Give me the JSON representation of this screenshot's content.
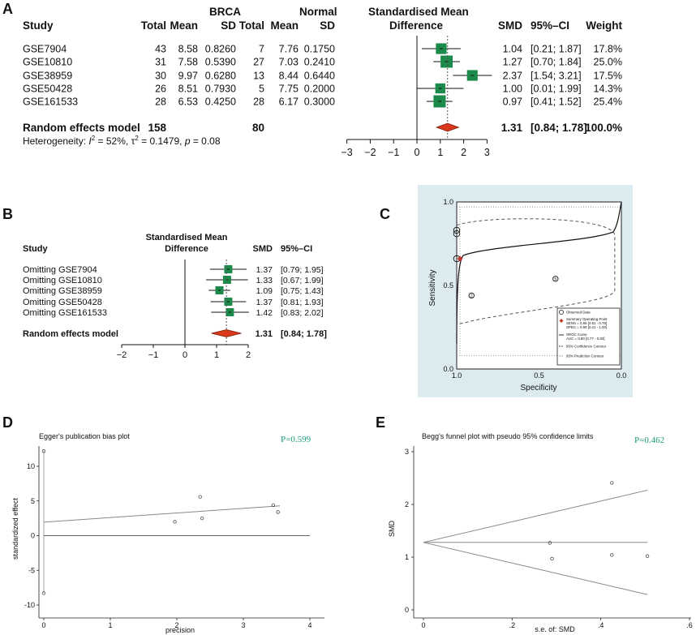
{
  "panels": {
    "a": "A",
    "b": "B",
    "c": "C",
    "d": "D",
    "e": "E"
  },
  "chart_data": [
    {
      "type": "forest",
      "panel": "A",
      "group_headers": {
        "brca": "BRCA",
        "normal": "Normal"
      },
      "columns": {
        "study": "Study",
        "total1": "Total",
        "mean1": "Mean",
        "sd1": "SD",
        "total2": "Total",
        "mean2": "Mean",
        "sd2": "SD",
        "smd_header_1": "Standardised Mean",
        "smd_header_2": "Difference",
        "smd": "SMD",
        "ci": "95%–CI",
        "weight": "Weight"
      },
      "studies": [
        {
          "name": "GSE7904",
          "n1": "43",
          "mean1": "8.58",
          "sd1": "0.8260",
          "n2": "7",
          "mean2": "7.76",
          "sd2": "0.1750",
          "smd": 1.04,
          "lo": 0.21,
          "hi": 1.87,
          "smd_text": "1.04",
          "ci_text": "[0.21; 1.87]",
          "weight": 17.8,
          "weight_text": "17.8%"
        },
        {
          "name": "GSE10810",
          "n1": "31",
          "mean1": "7.58",
          "sd1": "0.5390",
          "n2": "27",
          "mean2": "7.03",
          "sd2": "0.2410",
          "smd": 1.27,
          "lo": 0.7,
          "hi": 1.84,
          "smd_text": "1.27",
          "ci_text": "[0.70; 1.84]",
          "weight": 25.0,
          "weight_text": "25.0%"
        },
        {
          "name": "GSE38959",
          "n1": "30",
          "mean1": "9.97",
          "sd1": "0.6280",
          "n2": "13",
          "mean2": "8.44",
          "sd2": "0.6440",
          "smd": 2.37,
          "lo": 1.54,
          "hi": 3.21,
          "smd_text": "2.37",
          "ci_text": "[1.54; 3.21]",
          "weight": 17.5,
          "weight_text": "17.5%"
        },
        {
          "name": "GSE50428",
          "n1": "26",
          "mean1": "8.51",
          "sd1": "0.7930",
          "n2": "5",
          "mean2": "7.75",
          "sd2": "0.2000",
          "smd": 1.0,
          "lo": 0.01,
          "hi": 1.99,
          "smd_text": "1.00",
          "ci_text": "[0.01; 1.99]",
          "weight": 14.3,
          "weight_text": "14.3%"
        },
        {
          "name": "GSE161533",
          "n1": "28",
          "mean1": "6.53",
          "sd1": "0.4250",
          "n2": "28",
          "mean2": "6.17",
          "sd2": "0.3000",
          "smd": 0.97,
          "lo": 0.41,
          "hi": 1.52,
          "smd_text": "0.97",
          "ci_text": "[0.41; 1.52]",
          "weight": 25.4,
          "weight_text": "25.4%"
        }
      ],
      "summary": {
        "label": "Random effects model",
        "n1": "158",
        "n2": "80",
        "smd": 1.31,
        "lo": 0.84,
        "hi": 1.78,
        "smd_text": "1.31",
        "ci_text": "[0.84; 1.78]",
        "weight_text": "100.0%"
      },
      "heterogeneity": {
        "prefix": "Heterogeneity: ",
        "i2_sym": "I",
        "i2_sup": "2",
        "i2_val": " = 52%, ",
        "tau_sym": "τ",
        "tau_sup": "2",
        "tau_val": " = 0.1479, ",
        "p_sym": "p",
        "p_val": " = 0.08"
      },
      "axis": {
        "min": -3,
        "max": 3,
        "ticks": [
          -3,
          -2,
          -1,
          0,
          1,
          2,
          3
        ],
        "tick_labels": [
          "−3",
          "−2",
          "−1",
          "0",
          "1",
          "2",
          "3"
        ]
      }
    },
    {
      "type": "forest",
      "panel": "B",
      "columns": {
        "study": "Study",
        "smd_header_1": "Standardised Mean",
        "smd_header_2": "Difference",
        "smd": "SMD",
        "ci": "95%–CI"
      },
      "studies": [
        {
          "name": "Omitting GSE7904",
          "smd": 1.37,
          "lo": 0.79,
          "hi": 1.95,
          "smd_text": "1.37",
          "ci_text": "[0.79; 1.95]"
        },
        {
          "name": "Omitting GSE10810",
          "smd": 1.33,
          "lo": 0.67,
          "hi": 1.99,
          "smd_text": "1.33",
          "ci_text": "[0.67; 1.99]"
        },
        {
          "name": "Omitting GSE38959",
          "smd": 1.09,
          "lo": 0.75,
          "hi": 1.43,
          "smd_text": "1.09",
          "ci_text": "[0.75; 1.43]"
        },
        {
          "name": "Omitting GSE50428",
          "smd": 1.37,
          "lo": 0.81,
          "hi": 1.93,
          "smd_text": "1.37",
          "ci_text": "[0.81; 1.93]"
        },
        {
          "name": "Omitting GSE161533",
          "smd": 1.42,
          "lo": 0.83,
          "hi": 2.02,
          "smd_text": "1.42",
          "ci_text": "[0.83; 2.02]"
        }
      ],
      "summary": {
        "label": "Random effects model",
        "smd": 1.31,
        "lo": 0.84,
        "hi": 1.78,
        "smd_text": "1.31",
        "ci_text": "[0.84; 1.78]"
      },
      "axis": {
        "min": -2,
        "max": 2,
        "ticks": [
          -2,
          -1,
          0,
          1,
          2
        ],
        "tick_labels": [
          "−2",
          "−1",
          "0",
          "1",
          "2"
        ]
      }
    },
    {
      "type": "sroc",
      "panel": "C",
      "xlabel": "Specificity",
      "ylabel": "Sensitivity",
      "x_ticks": [
        "1.0",
        "0.5",
        "0.0"
      ],
      "y_ticks": [
        "1.0",
        "0.5",
        "0.0"
      ],
      "points": [
        {
          "spec": 1.0,
          "sens": 0.83,
          "label": ""
        },
        {
          "spec": 1.0,
          "sens": 0.81,
          "label": ""
        },
        {
          "spec": 1.0,
          "sens": 0.66,
          "label": ""
        },
        {
          "spec": 0.4,
          "sens": 0.54,
          "label": "5"
        },
        {
          "spec": 0.91,
          "sens": 0.44,
          "label": "2"
        }
      ],
      "summary_point": {
        "spec": 0.98,
        "sens": 0.66
      },
      "legend": [
        "Observed Data",
        "Summary Operating Point",
        "SENS = 0.66 [0.51 - 0.78]",
        "SPEC = 0.98 [0.21 - 1.00]",
        "SROC Curve",
        "AUC = 0.80 [0.77 - 0.83]",
        "95% Confidence Contour",
        "95% Prediction Contour"
      ],
      "colors": {
        "background": "#dcebf0",
        "summary": "#c0392b"
      }
    },
    {
      "type": "scatter",
      "panel": "D",
      "title": "Egger's publication bias plot",
      "p_text": "P=0.599",
      "xlabel": "precision",
      "ylabel": "standardized effect",
      "x_ticks": [
        "0",
        "1",
        "2",
        "3",
        "4"
      ],
      "y_ticks": [
        "10",
        "5",
        "0",
        "-5",
        "-10"
      ],
      "xlim": [
        0,
        4
      ],
      "ylim": [
        -11,
        13
      ],
      "points": [
        {
          "x": 0.0,
          "y": 12.2
        },
        {
          "x": 0.0,
          "y": -8.3
        },
        {
          "x": 1.97,
          "y": 2.0
        },
        {
          "x": 2.35,
          "y": 5.6
        },
        {
          "x": 2.38,
          "y": 2.5
        },
        {
          "x": 3.45,
          "y": 4.4
        },
        {
          "x": 3.52,
          "y": 3.4
        }
      ],
      "fit_line": {
        "x0": 0,
        "y0": 1.95,
        "x1": 3.55,
        "y1": 4.3
      },
      "colors": {
        "p_value": "#1a9c7c"
      }
    },
    {
      "type": "scatter",
      "panel": "E",
      "title": "Begg's funnel plot with pseudo 95% confidence limits",
      "p_text": "P=0.462",
      "xlabel": "s.e. of: SMD",
      "ylabel": "SMD",
      "x_ticks": [
        "0",
        ".2",
        ".4",
        ".6"
      ],
      "y_ticks": [
        "0",
        "1",
        "2",
        "3"
      ],
      "xlim": [
        0,
        0.6
      ],
      "ylim": [
        0,
        3.1
      ],
      "points": [
        {
          "x": 0.285,
          "y": 1.27
        },
        {
          "x": 0.29,
          "y": 0.97
        },
        {
          "x": 0.425,
          "y": 2.41
        },
        {
          "x": 0.425,
          "y": 1.04
        },
        {
          "x": 0.505,
          "y": 1.02
        }
      ],
      "pooled": 1.28,
      "funnel_upper": {
        "x0": 0,
        "y0": 1.28,
        "x1": 0.505,
        "y1": 2.27
      },
      "funnel_lower": {
        "x0": 0,
        "y0": 1.28,
        "x1": 0.505,
        "y1": 0.29
      },
      "colors": {
        "p_value": "#1a9c7c"
      }
    }
  ]
}
